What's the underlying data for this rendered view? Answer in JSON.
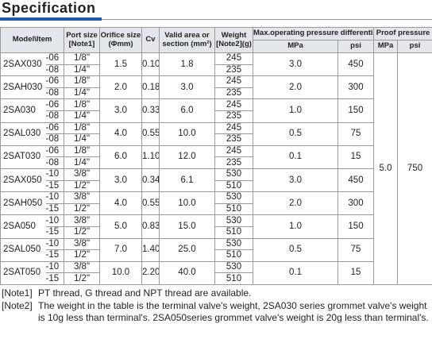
{
  "title": "Specification",
  "table": {
    "header": [
      [
        "Model\\Item"
      ],
      [
        "Port size",
        "[Note1]"
      ],
      [
        "Orifice size",
        "(Φmm)"
      ],
      [
        "Cv"
      ],
      [
        "Valid area or",
        "section (mm²)"
      ],
      [
        "Weight",
        "[Note2](g)"
      ],
      [
        "Max.operating pressure differentia"
      ],
      [
        "Proof pressure"
      ]
    ],
    "subheader": [
      "MPa",
      "psi",
      "MPa",
      "psi"
    ],
    "rows": [
      {
        "model": "2SAX030",
        "suffix": [
          "-06",
          "-08"
        ],
        "port": [
          "1/8\"",
          "1/4\""
        ],
        "orifice": "1.5",
        "cv": "0.10",
        "area": "1.8",
        "weight": [
          "245",
          "235"
        ],
        "mpa": "3.0",
        "psi": "450"
      },
      {
        "model": "2SAH030",
        "suffix": [
          "-06",
          "-08"
        ],
        "port": [
          "1/8\"",
          "1/4\""
        ],
        "orifice": "2.0",
        "cv": "0.18",
        "area": "3.0",
        "weight": [
          "245",
          "235"
        ],
        "mpa": "2.0",
        "psi": "300"
      },
      {
        "model": "2SA030",
        "suffix": [
          "-06",
          "-08"
        ],
        "port": [
          "1/8\"",
          "1/4\""
        ],
        "orifice": "3.0",
        "cv": "0.33",
        "area": "6.0",
        "weight": [
          "245",
          "235"
        ],
        "mpa": "1.0",
        "psi": "150"
      },
      {
        "model": "2SAL030",
        "suffix": [
          "-06",
          "-08"
        ],
        "port": [
          "1/8\"",
          "1/4\""
        ],
        "orifice": "4.0",
        "cv": "0.55",
        "area": "10.0",
        "weight": [
          "245",
          "235"
        ],
        "mpa": "0.5",
        "psi": "75"
      },
      {
        "model": "2SAT030",
        "suffix": [
          "-06",
          "-08"
        ],
        "port": [
          "1/8\"",
          "1/4\""
        ],
        "orifice": "6.0",
        "cv": "1.10",
        "area": "12.0",
        "weight": [
          "245",
          "235"
        ],
        "mpa": "0.1",
        "psi": "15"
      },
      {
        "model": "2SAX050",
        "suffix": [
          "-10",
          "-15"
        ],
        "port": [
          "3/8\"",
          "1/2\""
        ],
        "orifice": "3.0",
        "cv": "0.34",
        "area": "6.1",
        "weight": [
          "530",
          "510"
        ],
        "mpa": "3.0",
        "psi": "450"
      },
      {
        "model": "2SAH050",
        "suffix": [
          "-10",
          "-15"
        ],
        "port": [
          "3/8\"",
          "1/2\""
        ],
        "orifice": "4.0",
        "cv": "0.55",
        "area": "10.0",
        "weight": [
          "530",
          "510"
        ],
        "mpa": "2.0",
        "psi": "300"
      },
      {
        "model": "2SA050",
        "suffix": [
          "-10",
          "-15"
        ],
        "port": [
          "3/8\"",
          "1/2\""
        ],
        "orifice": "5.0",
        "cv": "0.83",
        "area": "15.0",
        "weight": [
          "530",
          "510"
        ],
        "mpa": "1.0",
        "psi": "150"
      },
      {
        "model": "2SAL050",
        "suffix": [
          "-10",
          "-15"
        ],
        "port": [
          "3/8\"",
          "1/2\""
        ],
        "orifice": "7.0",
        "cv": "1.40",
        "area": "25.0",
        "weight": [
          "530",
          "510"
        ],
        "mpa": "0.5",
        "psi": "75"
      },
      {
        "model": "2SAT050",
        "suffix": [
          "-10",
          "-15"
        ],
        "port": [
          "3/8\"",
          "1/2\""
        ],
        "orifice": "10.0",
        "cv": "2.20",
        "area": "40.0",
        "weight": [
          "530",
          "510"
        ],
        "mpa": "0.1",
        "psi": "15"
      }
    ],
    "proof": {
      "mpa": "5.0",
      "psi": "750"
    }
  },
  "notes": [
    {
      "label": "[Note1]",
      "text": "PT thread, G thread and NPT thread are available."
    },
    {
      "label": "[Note2]",
      "text": "The weight in the table is the terminal valve's weight, 2SA030 series grommet valve's weight is 10g less than terminal's. 2SA050series grommet valve's weight is 20g less than terminal's."
    }
  ]
}
